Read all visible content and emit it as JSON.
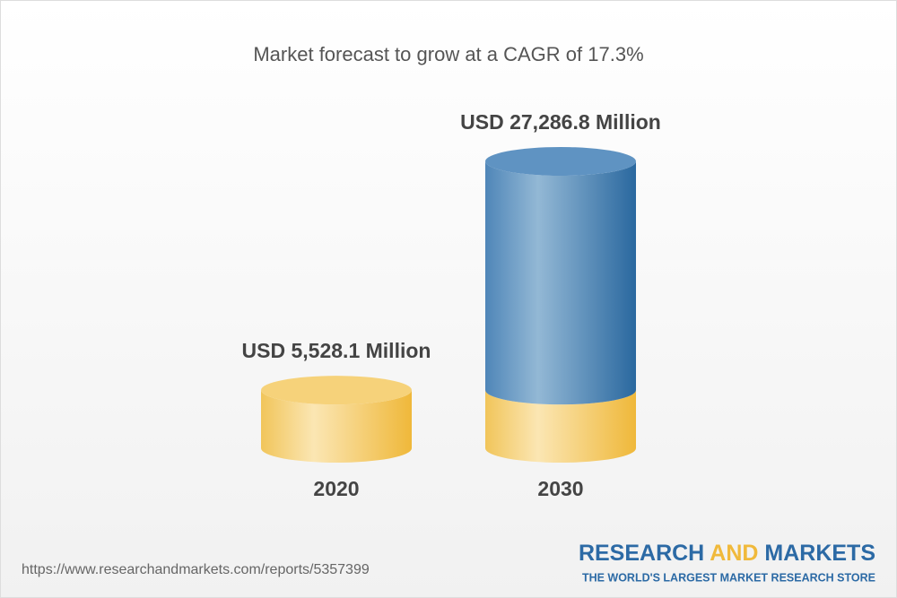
{
  "chart_data": {
    "type": "cylinder",
    "title": "Market forecast to grow at a CAGR of 17.3%",
    "categories": [
      "2020",
      "2030"
    ],
    "values": [
      5528.1,
      27286.8
    ],
    "value_labels": [
      "USD 5,528.1 Million",
      "USD 27,286.8 Million"
    ],
    "colors": [
      "#f2c250",
      "#2f6ea6"
    ]
  },
  "footer": {
    "url": "https://www.researchandmarkets.com/reports/5357399",
    "brand": [
      "RESEARCH ",
      "AND",
      " MARKETS"
    ],
    "tagline": "THE WORLD'S LARGEST MARKET RESEARCH STORE"
  }
}
